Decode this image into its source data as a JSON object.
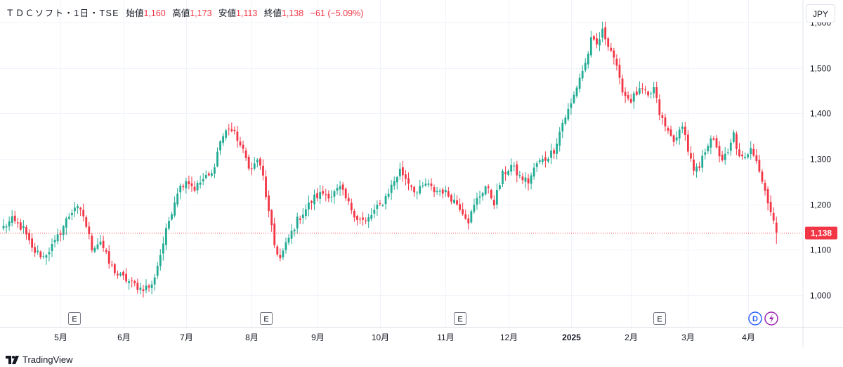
{
  "legend": {
    "symbol": "ＴＤＣソフト・1日・TSE",
    "open_label": "始値",
    "open_value": "1,160",
    "high_label": "高値",
    "high_value": "1,173",
    "low_label": "安値",
    "low_value": "1,113",
    "close_label": "終値",
    "close_value": "1,138",
    "change": "−61 (−5.09%)"
  },
  "currency_button": "JPY",
  "last_price_label": "1,138",
  "brand": "TradingView",
  "icons": {
    "dividend": "dividend-icon",
    "split": "lightning-icon",
    "logo": "tradingview-logo-icon"
  },
  "colors": {
    "up": "#22ab94",
    "down": "#f23645",
    "earnings_marker_border": "#787b86",
    "dividend_marker": "#2962ff",
    "split_marker": "#9c27b0",
    "last_price_badge": "#f23645"
  },
  "chart_data": {
    "type": "candlestick",
    "title": "",
    "xlabel": "",
    "ylabel": "",
    "ylim": [
      930,
      1650
    ],
    "y_ticks": [
      1000,
      1100,
      1200,
      1300,
      1400,
      1500,
      1600
    ],
    "y_tick_labels": [
      "1,000",
      "1,100",
      "1,200",
      "1,300",
      "1,400",
      "1,500",
      "1,600"
    ],
    "x_tick_labels": [
      "5月",
      "6月",
      "7月",
      "8月",
      "9月",
      "10月",
      "11月",
      "12月",
      "2025",
      "2月",
      "3月",
      "4月"
    ],
    "grid": true,
    "last_price": 1138,
    "earnings_marker_label": "E",
    "earnings_markers": [
      "8月",
      "11月",
      "2月"
    ],
    "dividend_marker_label": "D",
    "anchors": [
      [
        0,
        1150
      ],
      [
        3,
        1165
      ],
      [
        7,
        1145
      ],
      [
        10,
        1100
      ],
      [
        14,
        1085
      ],
      [
        18,
        1115
      ],
      [
        22,
        1165
      ],
      [
        25,
        1195
      ],
      [
        28,
        1175
      ],
      [
        31,
        1105
      ],
      [
        34,
        1120
      ],
      [
        37,
        1070
      ],
      [
        40,
        1045
      ],
      [
        44,
        1030
      ],
      [
        48,
        1015
      ],
      [
        52,
        1020
      ],
      [
        55,
        1090
      ],
      [
        58,
        1165
      ],
      [
        61,
        1230
      ],
      [
        64,
        1255
      ],
      [
        67,
        1235
      ],
      [
        70,
        1255
      ],
      [
        73,
        1265
      ],
      [
        76,
        1340
      ],
      [
        79,
        1370
      ],
      [
        82,
        1345
      ],
      [
        85,
        1300
      ],
      [
        87,
        1275
      ],
      [
        89,
        1300
      ],
      [
        91,
        1260
      ],
      [
        93,
        1180
      ],
      [
        95,
        1110
      ],
      [
        97,
        1080
      ],
      [
        100,
        1125
      ],
      [
        103,
        1165
      ],
      [
        106,
        1190
      ],
      [
        109,
        1215
      ],
      [
        112,
        1225
      ],
      [
        115,
        1220
      ],
      [
        118,
        1235
      ],
      [
        121,
        1200
      ],
      [
        124,
        1170
      ],
      [
        127,
        1160
      ],
      [
        130,
        1185
      ],
      [
        133,
        1205
      ],
      [
        136,
        1240
      ],
      [
        139,
        1275
      ],
      [
        142,
        1250
      ],
      [
        145,
        1225
      ],
      [
        148,
        1245
      ],
      [
        151,
        1230
      ],
      [
        154,
        1230
      ],
      [
        157,
        1215
      ],
      [
        160,
        1195
      ],
      [
        163,
        1165
      ],
      [
        166,
        1210
      ],
      [
        169,
        1240
      ],
      [
        172,
        1205
      ],
      [
        175,
        1265
      ],
      [
        178,
        1285
      ],
      [
        181,
        1260
      ],
      [
        184,
        1250
      ],
      [
        187,
        1290
      ],
      [
        190,
        1300
      ],
      [
        193,
        1320
      ],
      [
        196,
        1380
      ],
      [
        199,
        1420
      ],
      [
        202,
        1480
      ],
      [
        204,
        1510
      ],
      [
        206,
        1560
      ],
      [
        208,
        1550
      ],
      [
        210,
        1580
      ],
      [
        212,
        1555
      ],
      [
        214,
        1525
      ],
      [
        216,
        1470
      ],
      [
        218,
        1440
      ],
      [
        220,
        1430
      ],
      [
        222,
        1445
      ],
      [
        224,
        1450
      ],
      [
        226,
        1435
      ],
      [
        228,
        1455
      ],
      [
        230,
        1400
      ],
      [
        232,
        1370
      ],
      [
        234,
        1350
      ],
      [
        236,
        1340
      ],
      [
        238,
        1380
      ],
      [
        240,
        1320
      ],
      [
        242,
        1270
      ],
      [
        244,
        1280
      ],
      [
        246,
        1320
      ],
      [
        248,
        1350
      ],
      [
        250,
        1320
      ],
      [
        252,
        1300
      ],
      [
        254,
        1310
      ],
      [
        256,
        1355
      ],
      [
        258,
        1300
      ],
      [
        260,
        1300
      ],
      [
        262,
        1330
      ],
      [
        264,
        1300
      ],
      [
        266,
        1250
      ],
      [
        268,
        1210
      ],
      [
        271,
        1138
      ]
    ]
  }
}
